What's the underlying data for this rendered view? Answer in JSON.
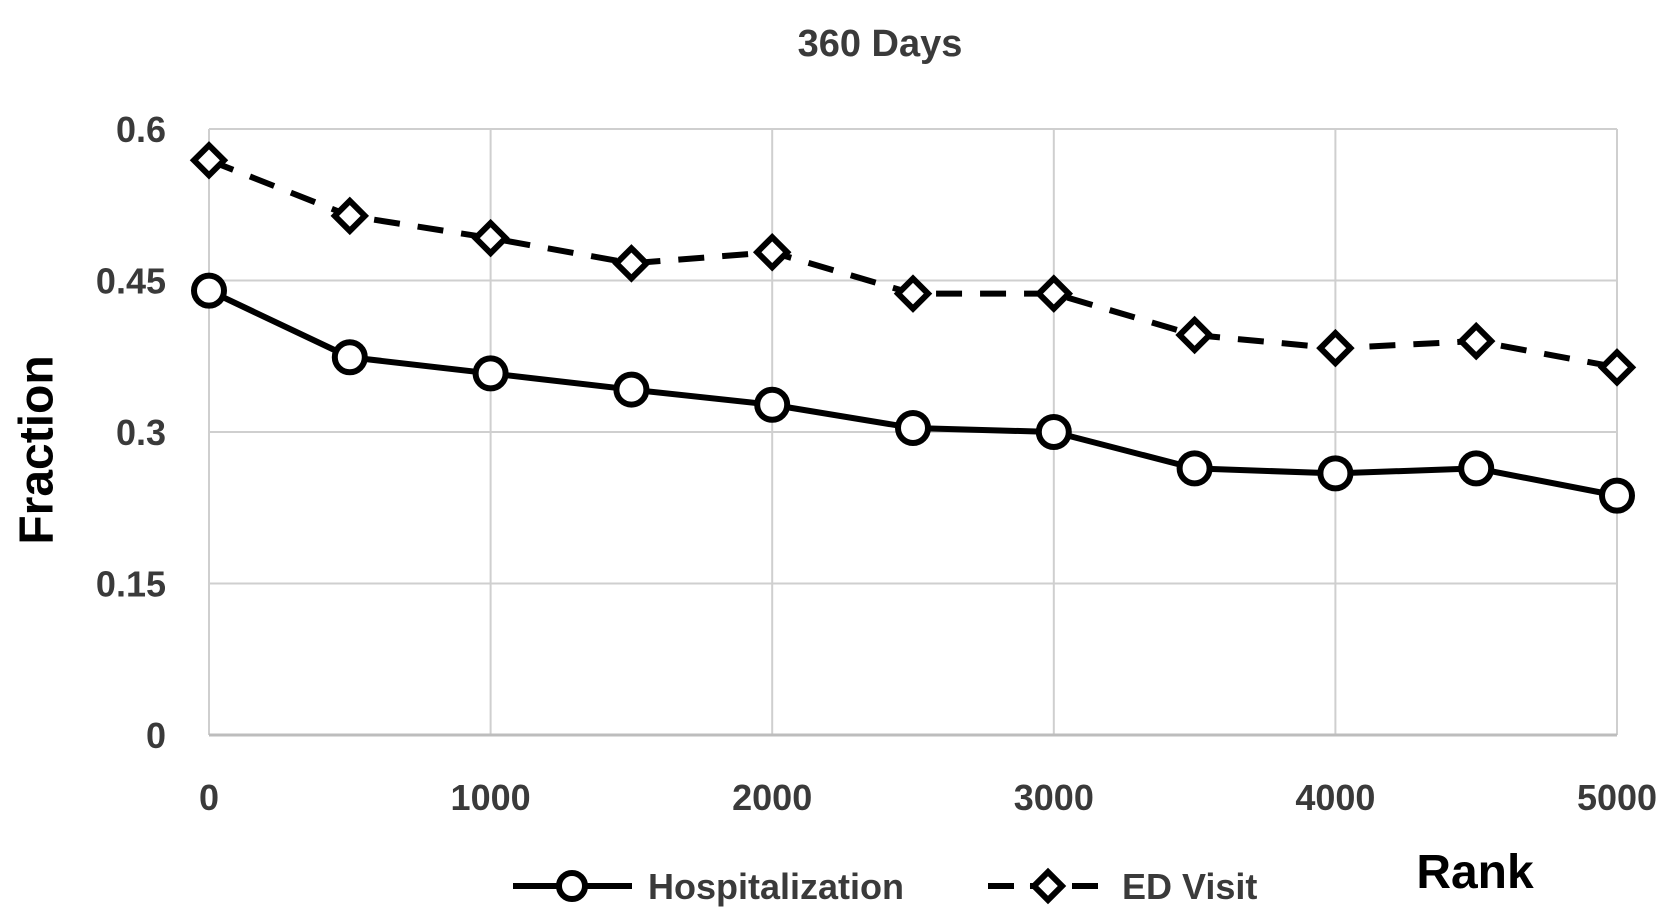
{
  "chart_data": {
    "type": "line",
    "title": "360 Days",
    "xlabel": "Rank",
    "ylabel": "Fraction",
    "xlim": [
      0,
      5000
    ],
    "ylim": [
      0,
      0.6
    ],
    "x_ticks": [
      "0",
      "1000",
      "2000",
      "3000",
      "4000",
      "5000"
    ],
    "y_ticks": [
      "0",
      "0.15",
      "0.3",
      "0.45",
      "0.6"
    ],
    "x_tick_values": [
      0,
      1000,
      2000,
      3000,
      4000,
      5000
    ],
    "y_tick_values": [
      0,
      0.15,
      0.3,
      0.45,
      0.6
    ],
    "grid": true,
    "legend_position": "bottom",
    "x": [
      0,
      500,
      1000,
      1500,
      2000,
      2500,
      3000,
      3500,
      4000,
      4500,
      5000
    ],
    "series": [
      {
        "name": "Hospitalization",
        "line_style": "solid",
        "marker": "circle",
        "color": "#000000",
        "values": [
          0.44,
          0.374,
          0.358,
          0.342,
          0.327,
          0.304,
          0.3,
          0.264,
          0.259,
          0.264,
          0.237
        ]
      },
      {
        "name": "ED Visit",
        "line_style": "dashed",
        "marker": "diamond",
        "color": "#000000",
        "values": [
          0.569,
          0.514,
          0.492,
          0.467,
          0.478,
          0.437,
          0.437,
          0.396,
          0.383,
          0.39,
          0.364
        ]
      }
    ],
    "colors": {
      "grid": "#cfcfcf",
      "text": "#3a3a3a",
      "series": "#000000"
    }
  }
}
